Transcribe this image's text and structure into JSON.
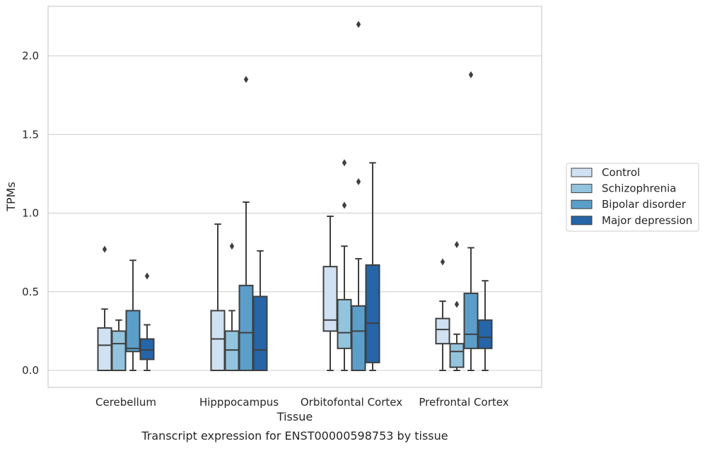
{
  "chart_data": {
    "type": "boxplot",
    "title": "",
    "caption": "Transcript expression for ENST00000598753 by tissue",
    "xlabel": "Tissue",
    "ylabel": "TPMs",
    "ylim": [
      -0.1,
      2.33
    ],
    "yticks": [
      0.0,
      0.5,
      1.0,
      1.5,
      2.0
    ],
    "ytick_labels": [
      "0.0",
      "0.5",
      "1.0",
      "1.5",
      "2.0"
    ],
    "grid": "horizontal",
    "legend_position": "right",
    "categories": [
      "Cerebellum",
      "Hipppocampus",
      "Orbitofontal Cortex",
      "Prefrontal Cortex"
    ],
    "series": [
      {
        "name": "Control",
        "color": "#cfe1f2",
        "boxes": [
          {
            "whislo": 0.0,
            "q1": 0.0,
            "med": 0.16,
            "q3": 0.27,
            "whishi": 0.39,
            "fliers": [
              0.77
            ]
          },
          {
            "whislo": 0.0,
            "q1": 0.0,
            "med": 0.2,
            "q3": 0.38,
            "whishi": 0.93,
            "fliers": []
          },
          {
            "whislo": 0.0,
            "q1": 0.25,
            "med": 0.32,
            "q3": 0.66,
            "whishi": 0.98,
            "fliers": []
          },
          {
            "whislo": 0.0,
            "q1": 0.17,
            "med": 0.26,
            "q3": 0.33,
            "whishi": 0.44,
            "fliers": [
              0.69
            ]
          }
        ]
      },
      {
        "name": "Schizophrenia",
        "color": "#93c4de",
        "boxes": [
          {
            "whislo": 0.0,
            "q1": 0.0,
            "med": 0.17,
            "q3": 0.25,
            "whishi": 0.32,
            "fliers": []
          },
          {
            "whislo": 0.0,
            "q1": 0.0,
            "med": 0.13,
            "q3": 0.25,
            "whishi": 0.38,
            "fliers": [
              0.79
            ]
          },
          {
            "whislo": 0.0,
            "q1": 0.14,
            "med": 0.24,
            "q3": 0.45,
            "whishi": 0.79,
            "fliers": [
              1.05,
              1.32
            ]
          },
          {
            "whislo": 0.0,
            "q1": 0.02,
            "med": 0.12,
            "q3": 0.17,
            "whishi": 0.23,
            "fliers": [
              0.42,
              0.8
            ]
          }
        ]
      },
      {
        "name": "Bipolar disorder",
        "color": "#5b9ec9",
        "boxes": [
          {
            "whislo": 0.0,
            "q1": 0.12,
            "med": 0.14,
            "q3": 0.38,
            "whishi": 0.7,
            "fliers": []
          },
          {
            "whislo": 0.0,
            "q1": 0.0,
            "med": 0.24,
            "q3": 0.54,
            "whishi": 1.07,
            "fliers": [
              1.85
            ]
          },
          {
            "whislo": 0.0,
            "q1": 0.0,
            "med": 0.25,
            "q3": 0.41,
            "whishi": 0.71,
            "fliers": [
              1.2,
              2.2
            ]
          },
          {
            "whislo": 0.0,
            "q1": 0.14,
            "med": 0.23,
            "q3": 0.49,
            "whishi": 0.78,
            "fliers": [
              1.88
            ]
          }
        ]
      },
      {
        "name": "Major depression",
        "color": "#2565a8",
        "boxes": [
          {
            "whislo": 0.0,
            "q1": 0.07,
            "med": 0.13,
            "q3": 0.2,
            "whishi": 0.29,
            "fliers": [
              0.6
            ]
          },
          {
            "whislo": 0.0,
            "q1": 0.0,
            "med": 0.13,
            "q3": 0.47,
            "whishi": 0.76,
            "fliers": []
          },
          {
            "whislo": 0.0,
            "q1": 0.05,
            "med": 0.3,
            "q3": 0.67,
            "whishi": 1.32,
            "fliers": []
          },
          {
            "whislo": 0.0,
            "q1": 0.14,
            "med": 0.21,
            "q3": 0.32,
            "whishi": 0.57,
            "fliers": []
          }
        ]
      }
    ]
  }
}
